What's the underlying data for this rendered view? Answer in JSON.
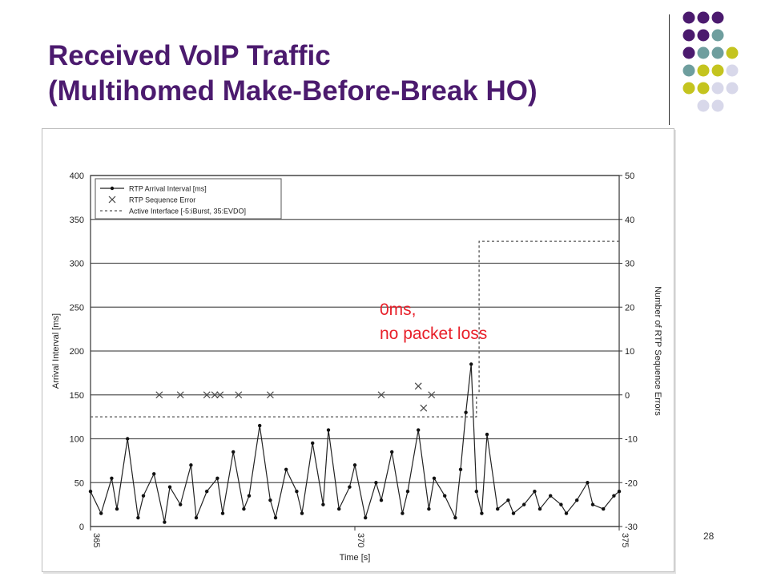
{
  "slide": {
    "title_line1": "Received VoIP Traffic",
    "title_line2": "(Multihomed Make-Before-Break HO)",
    "page_number": "28",
    "title_color": "#4b1a6e",
    "dot_colors": [
      "#4b1a6e",
      "#6e9e9e",
      "#c4c41f",
      "#d8d8ea"
    ]
  },
  "annotation": {
    "line1": "0ms,",
    "line2": "no packet loss",
    "color": "#e8202a"
  },
  "chart_data": {
    "type": "line",
    "xlabel": "Time [s]",
    "ylabel": "Arrival Interval [ms]",
    "y2label": "Number of RTP Sequence Errors",
    "xlim": [
      365,
      375
    ],
    "ylim": [
      0,
      400
    ],
    "y2lim": [
      -30,
      50
    ],
    "x_ticks": [
      "365",
      "370",
      "375"
    ],
    "y_ticks": [
      "0",
      "50",
      "100",
      "150",
      "200",
      "250",
      "300",
      "350",
      "400"
    ],
    "y2_ticks": [
      "-30",
      "-20",
      "-10",
      "0",
      "10",
      "20",
      "30",
      "40",
      "50"
    ],
    "grid": true,
    "legend_position": "top-left",
    "legend": [
      "RTP Arrival Interval [ms]",
      "RTP Sequence Error",
      "Active Interface [-5:iBurst, 35:EVDO]"
    ],
    "series": [
      {
        "name": "RTP Arrival Interval [ms]",
        "style": "line-markers",
        "x": [
          365.0,
          365.2,
          365.4,
          365.5,
          365.7,
          365.9,
          366.0,
          366.2,
          366.4,
          366.5,
          366.7,
          366.9,
          367.0,
          367.2,
          367.4,
          367.5,
          367.7,
          367.9,
          368.0,
          368.2,
          368.4,
          368.5,
          368.7,
          368.9,
          369.0,
          369.2,
          369.4,
          369.5,
          369.7,
          369.9,
          370.0,
          370.2,
          370.4,
          370.5,
          370.7,
          370.9,
          371.0,
          371.2,
          371.4,
          371.5,
          371.7,
          371.9,
          372.0,
          372.1,
          372.2,
          372.3,
          372.4,
          372.5,
          372.7,
          372.9,
          373.0,
          373.2,
          373.4,
          373.5,
          373.7,
          373.9,
          374.0,
          374.2,
          374.4,
          374.5,
          374.7,
          374.9,
          375.0
        ],
        "values": [
          40,
          15,
          55,
          20,
          100,
          10,
          35,
          60,
          5,
          45,
          25,
          70,
          10,
          40,
          55,
          15,
          85,
          20,
          35,
          115,
          30,
          10,
          65,
          40,
          15,
          95,
          25,
          110,
          20,
          45,
          70,
          10,
          50,
          30,
          85,
          15,
          40,
          110,
          20,
          55,
          35,
          10,
          65,
          130,
          185,
          40,
          15,
          105,
          20,
          30,
          15,
          25,
          40,
          20,
          35,
          25,
          15,
          30,
          50,
          25,
          20,
          35,
          40
        ]
      },
      {
        "name": "RTP Sequence Error",
        "axis": "right",
        "style": "x-markers",
        "x": [
          366.3,
          366.7,
          367.2,
          367.35,
          367.45,
          367.8,
          368.4,
          370.5,
          371.2,
          371.3,
          371.45
        ],
        "values": [
          0,
          0,
          0,
          0,
          0,
          0,
          0,
          0,
          2,
          -3,
          0
        ]
      },
      {
        "name": "Active Interface [-5:iBurst, 35:EVDO]",
        "axis": "right",
        "style": "dashed-step",
        "x": [
          365.0,
          372.3,
          372.3,
          372.35,
          372.35,
          375.0
        ],
        "values": [
          -5,
          -5,
          0,
          0,
          35,
          35
        ]
      }
    ]
  }
}
